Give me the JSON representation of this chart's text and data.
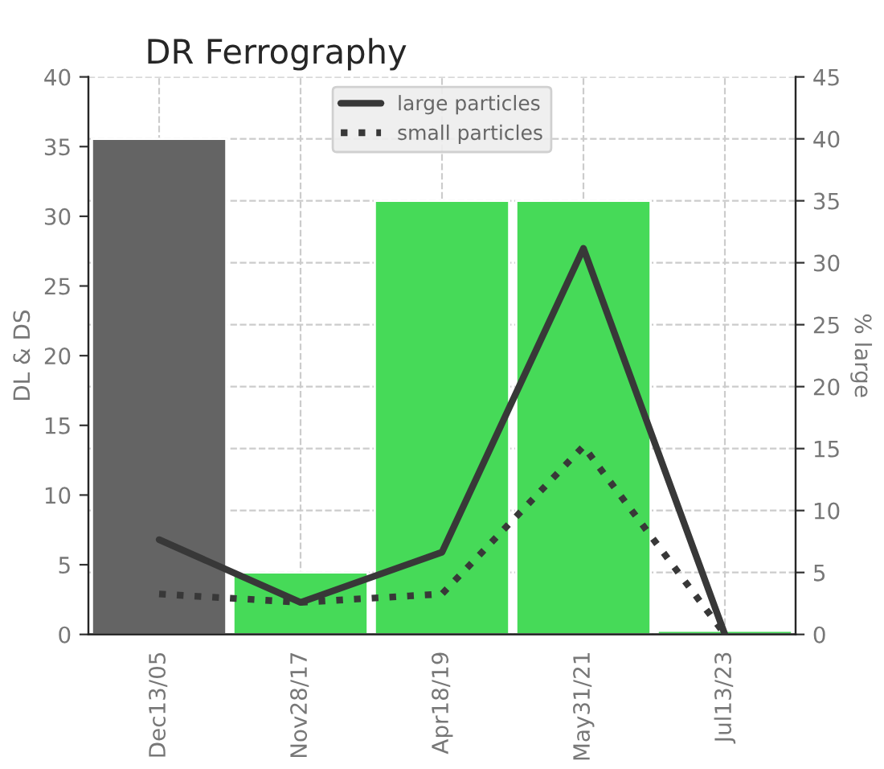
{
  "chart_data": {
    "type": "bar",
    "title": "DR Ferrography",
    "ylabel": "DL & DS",
    "y2label": "% large",
    "categories": [
      "Dec13/05",
      "Nov28/17",
      "Apr18/19",
      "May31/21",
      "Jul13/23"
    ],
    "series": [
      {
        "axis": "y2",
        "colors": [
          "#646464",
          "#46da58",
          "#46da58",
          "#46da58",
          "#46da58"
        ],
        "values": [
          40,
          5,
          35,
          35,
          0.3
        ]
      },
      {
        "type": "line",
        "name": "large particles",
        "color": "#383838",
        "line_style": "solid",
        "values": [
          6.8,
          2.3,
          5.9,
          27.7,
          0
        ]
      },
      {
        "type": "line",
        "name": "small particles",
        "color": "#383838",
        "line_style": "dotted",
        "values": [
          2.9,
          2.3,
          2.9,
          13.5,
          0
        ]
      }
    ],
    "ylim": [
      0,
      40
    ],
    "yticks": [
      0,
      5,
      10,
      15,
      20,
      25,
      30,
      35,
      40
    ],
    "y2lim": [
      0,
      45
    ],
    "y2ticks": [
      0,
      5,
      10,
      15,
      20,
      25,
      30,
      35,
      40,
      45
    ],
    "grid": true,
    "legend": "top center"
  }
}
